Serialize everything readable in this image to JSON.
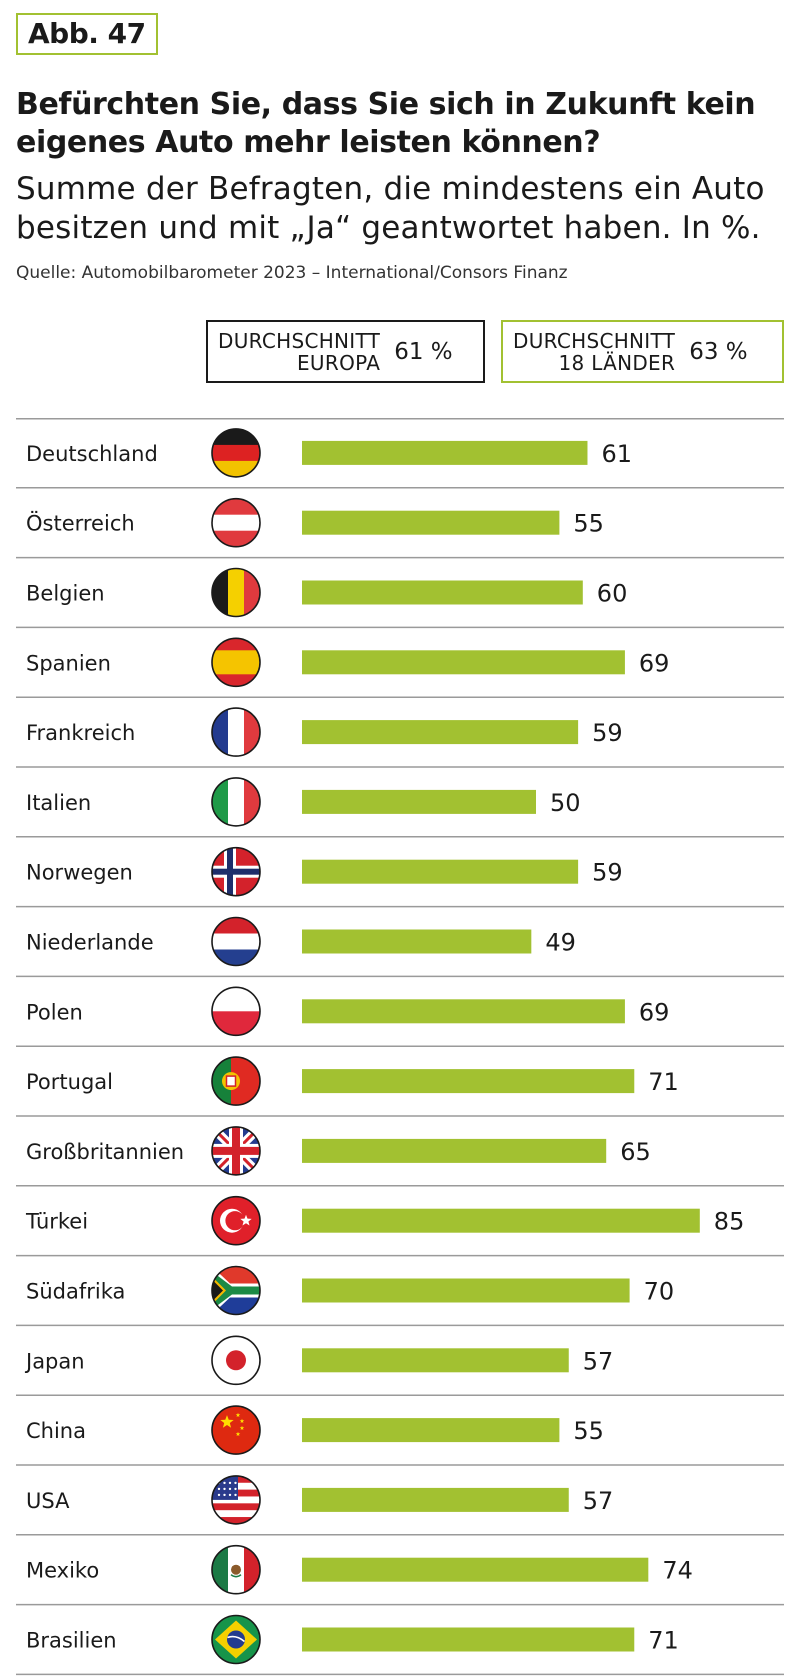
{
  "figure_label": "Abb. 47",
  "title": "Befürchten Sie, dass Sie sich in Zukunft kein eigenes Auto mehr leisten können?",
  "subtitle": "Summe der Befragten, die mindestens ein Auto besitzen und mit „Ja“ geantwortet haben. In %.",
  "source": "Quelle: Automobilbarometer 2023 – International/Consors Finanz",
  "averages": {
    "europe": {
      "label_line1": "DURCHSCHNITT",
      "label_line2": "EUROPA",
      "value": "61 %"
    },
    "all": {
      "label_line1": "DURCHSCHNITT",
      "label_line2": "18 LÄNDER",
      "value": "63 %"
    }
  },
  "colors": {
    "bar": "#a2c131",
    "rule": "#9a9a9a",
    "text": "#1a1a1a"
  },
  "chart_data": {
    "type": "bar",
    "orientation": "horizontal",
    "unit": "%",
    "xlim": [
      0,
      100
    ],
    "categories": [
      "Deutschland",
      "Österreich",
      "Belgien",
      "Spanien",
      "Frankreich",
      "Italien",
      "Norwegen",
      "Niederlande",
      "Polen",
      "Portugal",
      "Großbritannien",
      "Türkei",
      "Südafrika",
      "Japan",
      "China",
      "USA",
      "Mexiko",
      "Brasilien"
    ],
    "values": [
      61,
      55,
      60,
      69,
      59,
      50,
      59,
      49,
      69,
      71,
      65,
      85,
      70,
      57,
      55,
      57,
      74,
      71
    ],
    "flags": [
      "de-flag-icon",
      "at-flag-icon",
      "be-flag-icon",
      "es-flag-icon",
      "fr-flag-icon",
      "it-flag-icon",
      "no-flag-icon",
      "nl-flag-icon",
      "pl-flag-icon",
      "pt-flag-icon",
      "gb-flag-icon",
      "tr-flag-icon",
      "za-flag-icon",
      "jp-flag-icon",
      "cn-flag-icon",
      "us-flag-icon",
      "mx-flag-icon",
      "br-flag-icon"
    ]
  }
}
